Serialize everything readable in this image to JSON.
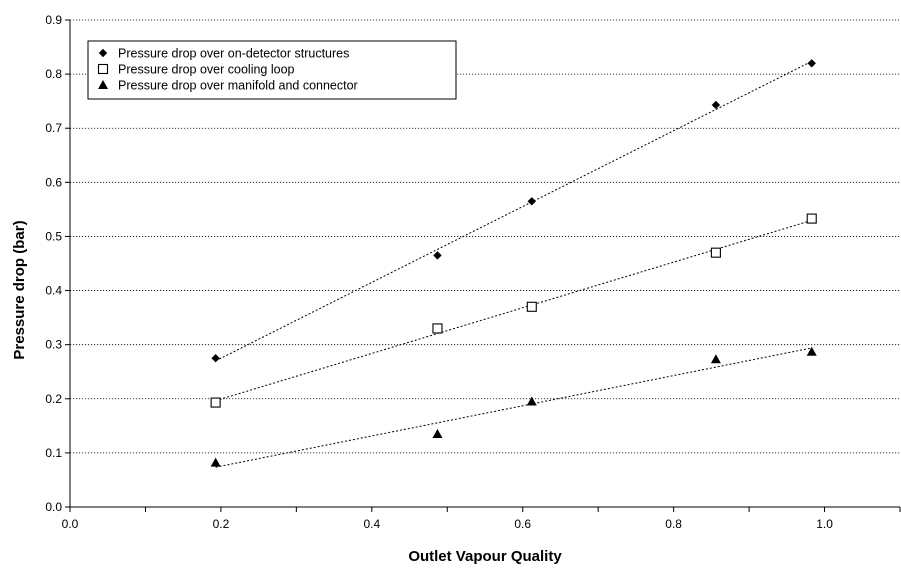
{
  "chart_data": {
    "type": "scatter",
    "title": "",
    "xlabel": "Outlet Vapour Quality",
    "ylabel": "Pressure drop (bar)",
    "xlim": [
      0.0,
      1.1
    ],
    "ylim": [
      0.0,
      0.9
    ],
    "x_ticks": [
      "0.0",
      "0.2",
      "0.4",
      "0.6",
      "0.8",
      "1.0"
    ],
    "y_ticks": [
      "0.0",
      "0.1",
      "0.2",
      "0.3",
      "0.4",
      "0.5",
      "0.6",
      "0.7",
      "0.8",
      "0.9"
    ],
    "grid": "horizontal dotted",
    "legend_placement": "top-left",
    "trendlines": "linear, dotted",
    "series": [
      {
        "name": "Pressure drop over on-detector structures",
        "marker": "diamond-filled",
        "color": "#000000",
        "x": [
          0.193,
          0.487,
          0.612,
          0.856,
          0.983
        ],
        "y": [
          0.275,
          0.465,
          0.565,
          0.743,
          0.82
        ]
      },
      {
        "name": "Pressure drop over cooling loop",
        "marker": "square-open",
        "color": "#000000",
        "x": [
          0.193,
          0.487,
          0.612,
          0.856,
          0.983
        ],
        "y": [
          0.193,
          0.33,
          0.37,
          0.47,
          0.533
        ]
      },
      {
        "name": "Pressure drop over manifold and connector",
        "marker": "triangle-filled",
        "color": "#000000",
        "x": [
          0.193,
          0.487,
          0.612,
          0.856,
          0.983
        ],
        "y": [
          0.082,
          0.135,
          0.195,
          0.273,
          0.287
        ]
      }
    ]
  }
}
